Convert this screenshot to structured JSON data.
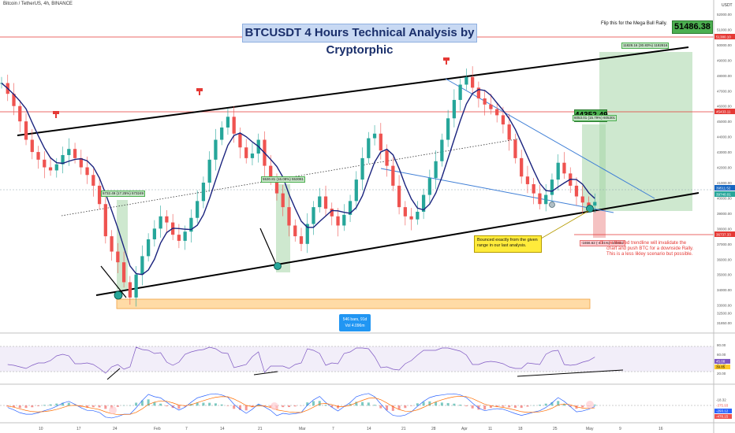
{
  "symbol_line": "Bitcoin / TetherUS, 4h, BINANCE",
  "title": "BTCUSDT 4 Hours Technical Analysis by Cryptorphic",
  "flip_note": "Flip this for the Mega Bull Rally.",
  "target_high": "51486.38",
  "target_mid": "44352.49",
  "measure_high": "11828.16 (30.83%) 1182816",
  "measure_mid": "6053.01 (15.79%) 605301",
  "measure_left": "5732.49 (17.25%) 573249",
  "measure_center": "5530.81 (16.08%) 553081",
  "measure_down": "-1656.62 (-4.31%) -165662",
  "note_bounce": "Bounced exactly from the given range in our last analysis.",
  "red_note_lines": [
    "If ... w this red trendline will invalidate the",
    "chart and push BTC for a downside Rally.",
    "This is a less likley scenario but possible."
  ],
  "bars_box_line1": "546 bars, 91d",
  "bars_box_line2": "Vol 4.096m",
  "axis_currency": "USDT",
  "price_ticks": [
    "52000.00",
    "51000.00",
    "50000.00",
    "49000.00",
    "48000.00",
    "47000.00",
    "46000.00",
    "45000.00",
    "44000.00",
    "43000.00",
    "42000.00",
    "41000.00",
    "40000.00",
    "39000.00",
    "38000.00",
    "37000.00",
    "36000.00",
    "35000.00",
    "34000.00",
    "33000.00",
    "32500.00",
    "31850.00"
  ],
  "price_labels": [
    {
      "text": "51380.10",
      "color": "#e53935"
    },
    {
      "text": "45433.11",
      "color": "#e53935"
    },
    {
      "text": "39511.52",
      "color": "#1565c0"
    },
    {
      "text": "39740.01",
      "color": "#26a69a"
    },
    {
      "text": "36737.33",
      "color": "#e53935"
    }
  ],
  "rsi_ticks": [
    "80.00",
    "60.00",
    "40.00",
    "20.00"
  ],
  "rsi_values": [
    "45.08",
    "39.85"
  ],
  "macd_values": [
    "-18.32",
    "-375.93",
    "-293.12",
    "-478.15"
  ],
  "time_ticks": [
    "10",
    "17",
    "24",
    "Feb",
    "7",
    "14",
    "21",
    "Mar",
    "7",
    "14",
    "21",
    "28",
    "Apr",
    "11",
    "18",
    "25",
    "May",
    "9",
    "16"
  ],
  "chart_data": {
    "type": "candlestick",
    "title": "BTCUSDT 4 Hours Technical Analysis by Cryptorphic",
    "series": [
      {
        "name": "BTC/USDT",
        "values": [
          47500,
          46800,
          46000,
          45000,
          43800,
          43000,
          42500,
          42000,
          41800,
          42200,
          42800,
          43200,
          42600,
          42000,
          41500,
          40800,
          39600,
          37500,
          36500,
          35800,
          34500,
          33500,
          35000,
          36200,
          37300,
          38000,
          38800,
          38400,
          37600,
          37200,
          37800,
          38700,
          39800,
          41000,
          42500,
          43800,
          44600,
          45300,
          44200,
          43300,
          42600,
          42900,
          43800,
          42100,
          41200,
          40300,
          39400,
          38200,
          37500,
          37000,
          38300,
          39400,
          40100,
          39300,
          38800,
          38200,
          38900,
          39800,
          41200,
          42600,
          43900,
          44200,
          43100,
          42100,
          40800,
          39400,
          38800,
          38600,
          39100,
          40200,
          41300,
          42400,
          43800,
          45200,
          46400,
          47400,
          47900,
          47200,
          46500,
          46100,
          45800,
          45400,
          44800,
          43800,
          42600,
          41400,
          40900,
          40300,
          39600,
          40200,
          41200,
          42300,
          41600,
          40800,
          40100,
          39700,
          39500,
          39740
        ]
      }
    ],
    "y_range": [
      31850,
      52000
    ],
    "grid": true,
    "time_labels": [
      "10",
      "17",
      "24",
      "Feb",
      "7",
      "14",
      "21",
      "Mar",
      "7",
      "14",
      "21",
      "28",
      "Apr",
      "11",
      "18",
      "25",
      "May",
      "9",
      "16"
    ],
    "levels": [
      51380.1,
      45433.11,
      39511.52,
      36737.33
    ]
  }
}
